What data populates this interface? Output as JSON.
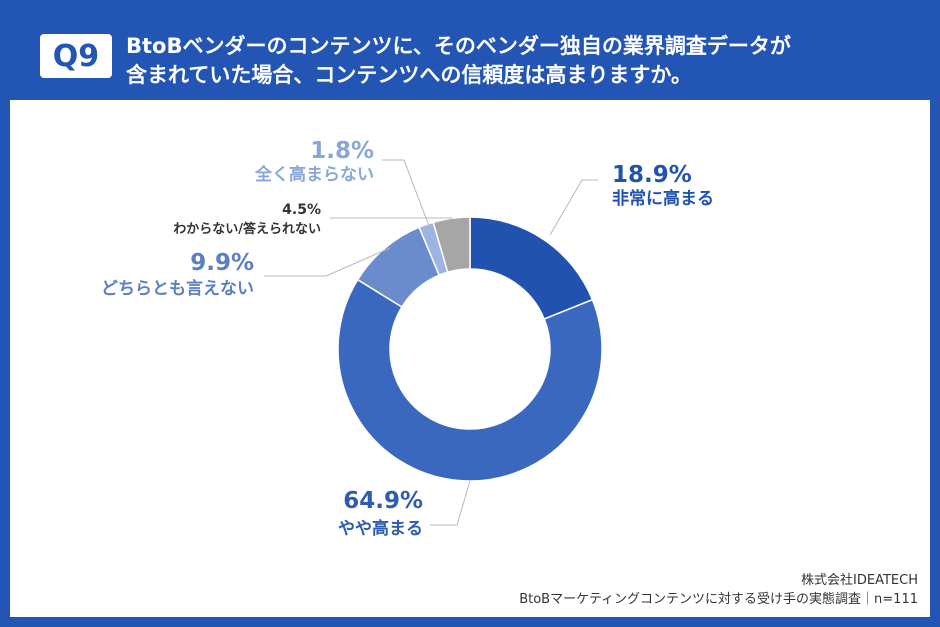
{
  "question": {
    "badge": "Q9",
    "title_line1": "BtoBベンダーのコンテンツに、そのベンダー独自の業界調査データが",
    "title_line2": "含まれていた場合、コンテンツへの信頼度は高まりますか。"
  },
  "chart_data": {
    "type": "pie",
    "donut": true,
    "slices": [
      {
        "label": "非常に高まる",
        "value": 18.9,
        "pct_text": "18.9%",
        "color": "#2152b0",
        "label_color": "#2152b0"
      },
      {
        "label": "やや高まる",
        "value": 64.9,
        "pct_text": "64.9%",
        "color": "#3a68be",
        "label_color": "#2f5bb0"
      },
      {
        "label": "どちらとも言えない",
        "value": 9.9,
        "pct_text": "9.9%",
        "color": "#6a8ccd",
        "label_color": "#5b7fc2"
      },
      {
        "label": "全く高まらない",
        "value": 1.8,
        "pct_text": "1.8%",
        "color": "#9bb4e2",
        "label_color": "#8aa6d8"
      },
      {
        "label": "わからない/答えられない",
        "value": 4.5,
        "pct_text": "4.5%",
        "color": "#a6a6a6",
        "label_color": "#333333"
      }
    ]
  },
  "source": {
    "company": "株式会社IDEATECH",
    "survey": "BtoBマーケティングコンテンツに対する受け手の実態調査｜n=111"
  }
}
